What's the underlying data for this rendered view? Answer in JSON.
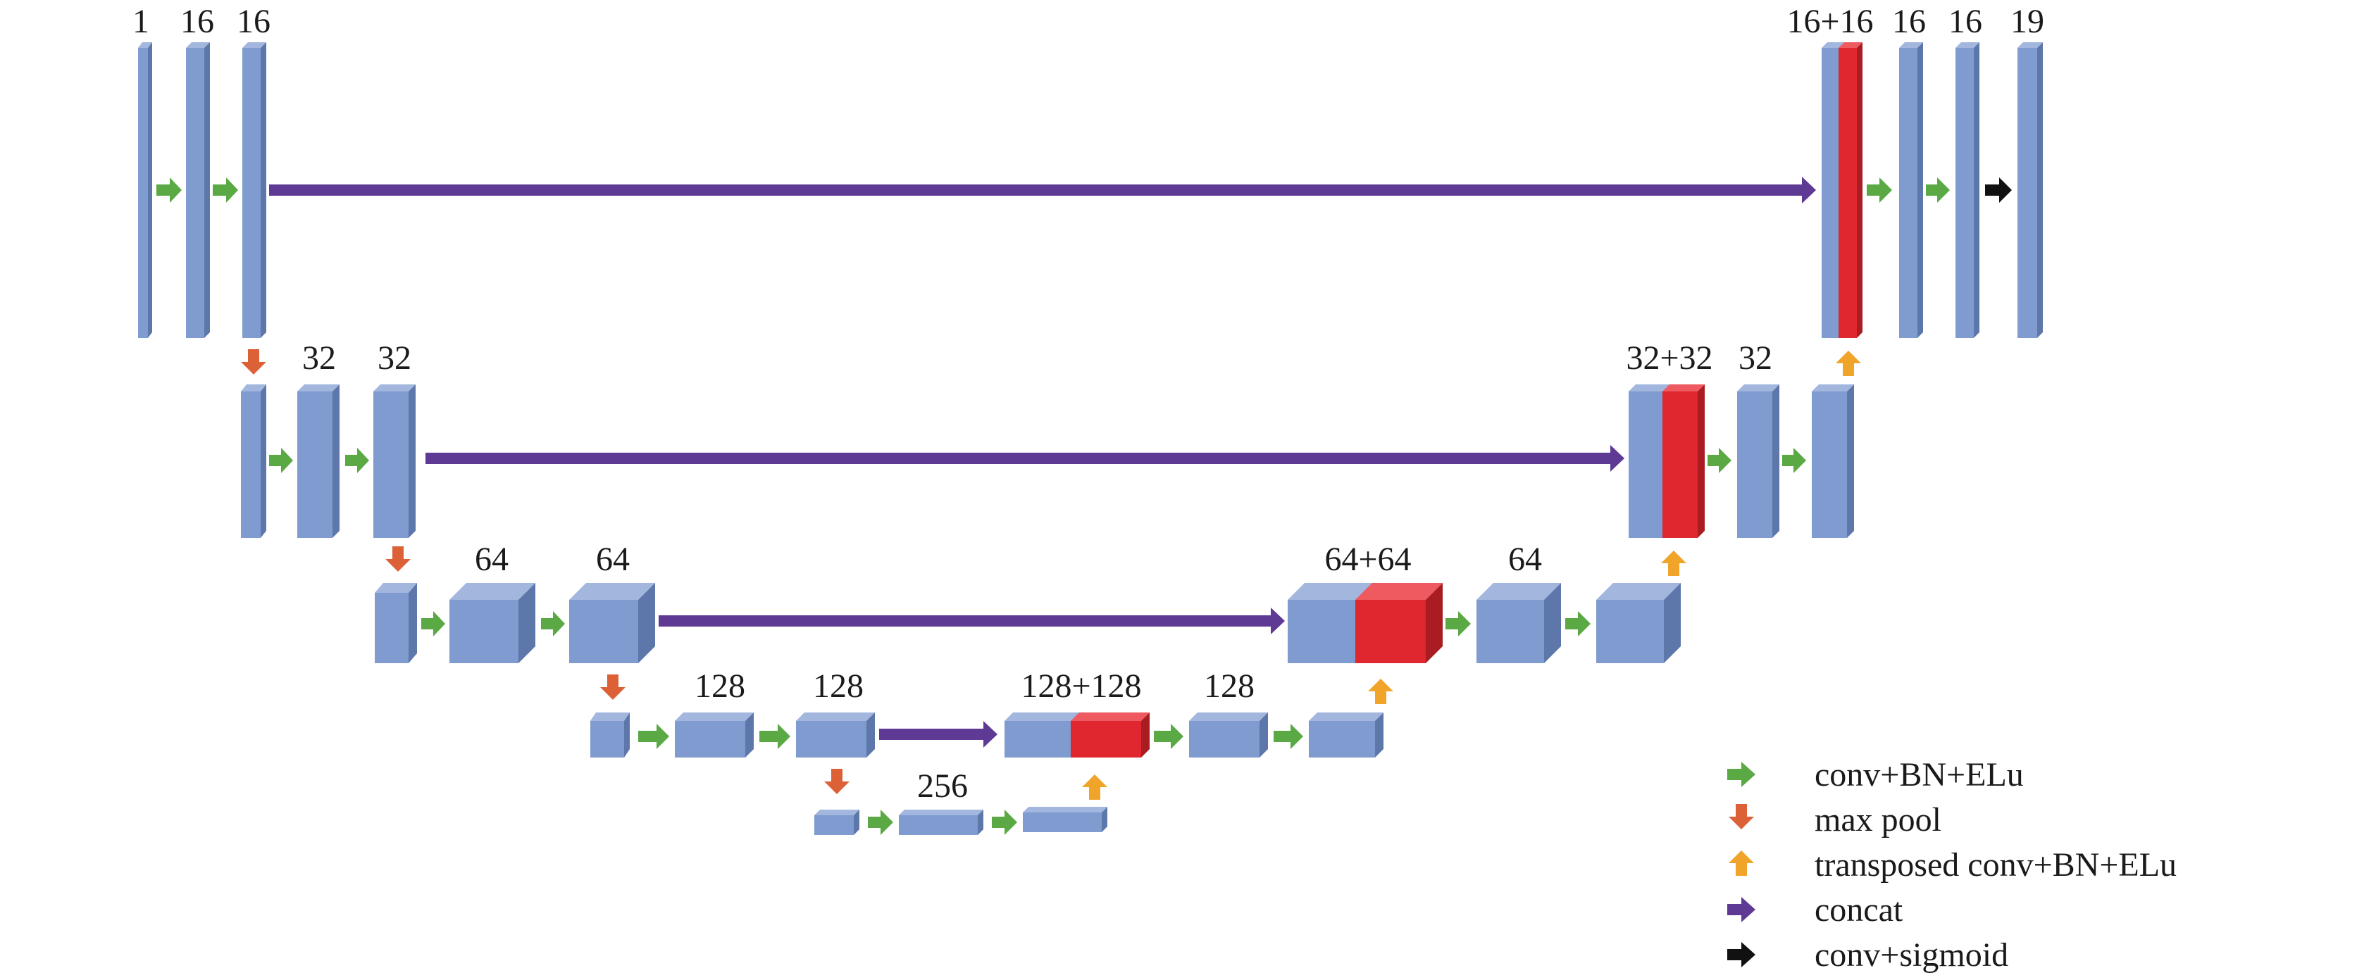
{
  "colors": {
    "block": "#7f9bcf",
    "concat_block": "#e0262f",
    "conv": "#5aa945",
    "pool": "#dd6137",
    "upconv": "#f0a42a",
    "concat": "#5f3a95",
    "sigmoid": "#111111"
  },
  "channel_labels": {
    "l1_in": "1",
    "l1_c1": "16",
    "l1_c2": "16",
    "l1_cat": "16+16",
    "l1_u1": "16",
    "l1_u2": "16",
    "l1_out": "19",
    "l2_c1": "32",
    "l2_c2": "32",
    "l2_cat": "32+32",
    "l2_u1": "32",
    "l3_c1": "64",
    "l3_c2": "64",
    "l3_cat": "64+64",
    "l3_u1": "64",
    "l4_c1": "128",
    "l4_c2": "128",
    "l4_cat": "128+128",
    "l4_u1": "128",
    "l5_c1": "256"
  },
  "legend": [
    {
      "icon": "conv-arrow-icon",
      "color": "#5aa945",
      "label": "conv+BN+ELu"
    },
    {
      "icon": "max-pool-arrow-icon",
      "color": "#dd6137",
      "label": "max pool"
    },
    {
      "icon": "upconv-arrow-icon",
      "color": "#f0a42a",
      "label": "transposed conv+BN+ELu"
    },
    {
      "icon": "concat-arrow-icon",
      "color": "#5f3a95",
      "label": "concat"
    },
    {
      "icon": "sigmoid-arrow-icon",
      "color": "#111111",
      "label": "conv+sigmoid"
    }
  ]
}
